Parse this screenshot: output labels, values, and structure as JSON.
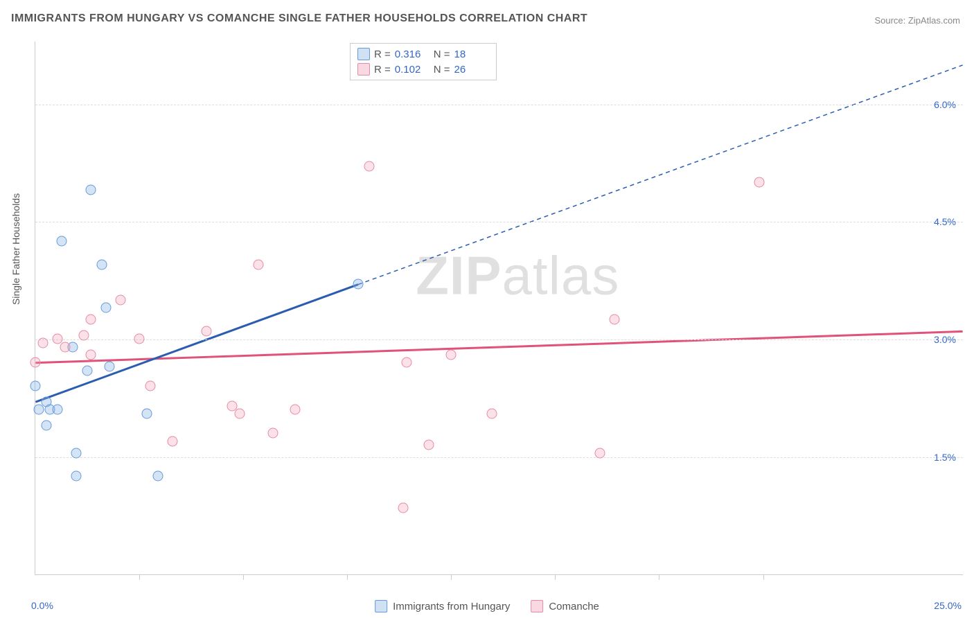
{
  "title": "IMMIGRANTS FROM HUNGARY VS COMANCHE SINGLE FATHER HOUSEHOLDS CORRELATION CHART",
  "source": "Source: ZipAtlas.com",
  "y_axis_label": "Single Father Households",
  "watermark_bold": "ZIP",
  "watermark_light": "atlas",
  "chart": {
    "type": "scatter",
    "xlim": [
      0.0,
      25.0
    ],
    "ylim": [
      0.0,
      6.8
    ],
    "x_tick_positions": [
      2.8,
      5.6,
      8.4,
      11.2,
      14.0,
      16.8,
      19.6
    ],
    "y_gridlines": [
      1.5,
      3.0,
      4.5,
      6.0
    ],
    "y_tick_labels": [
      "1.5%",
      "3.0%",
      "4.5%",
      "6.0%"
    ],
    "x_axis_min_label": "0.0%",
    "x_axis_max_label": "25.0%",
    "background_color": "#ffffff",
    "grid_color": "#dddddd",
    "axis_color": "#cccccc",
    "label_color": "#3366cc"
  },
  "series": [
    {
      "name": "Immigrants from Hungary",
      "color_fill": "rgba(135,179,226,0.35)",
      "color_stroke": "#6699dd",
      "line_color": "#2a5db0",
      "marker_radius": 7.5,
      "R": "0.316",
      "N": "18",
      "trend": {
        "x1": 0.0,
        "y1": 2.2,
        "x2": 8.7,
        "y2": 3.7,
        "dash_x2": 25.0,
        "dash_y2": 6.5
      },
      "points": [
        {
          "x": 0.0,
          "y": 2.4
        },
        {
          "x": 0.1,
          "y": 2.1
        },
        {
          "x": 0.3,
          "y": 2.2
        },
        {
          "x": 0.4,
          "y": 2.1
        },
        {
          "x": 0.3,
          "y": 1.9
        },
        {
          "x": 0.6,
          "y": 2.1
        },
        {
          "x": 0.7,
          "y": 4.25
        },
        {
          "x": 1.0,
          "y": 2.9
        },
        {
          "x": 1.4,
          "y": 2.6
        },
        {
          "x": 1.5,
          "y": 4.9
        },
        {
          "x": 1.8,
          "y": 3.95
        },
        {
          "x": 1.9,
          "y": 3.4
        },
        {
          "x": 2.0,
          "y": 2.65
        },
        {
          "x": 3.0,
          "y": 2.05
        },
        {
          "x": 3.3,
          "y": 1.25
        },
        {
          "x": 1.1,
          "y": 1.55
        },
        {
          "x": 1.1,
          "y": 1.25
        },
        {
          "x": 8.7,
          "y": 3.7
        }
      ]
    },
    {
      "name": "Comanche",
      "color_fill": "rgba(240,160,180,0.30)",
      "color_stroke": "#e68aa5",
      "line_color": "#e0527a",
      "marker_radius": 7.5,
      "R": "0.102",
      "N": "26",
      "trend": {
        "x1": 0.0,
        "y1": 2.7,
        "x2": 25.0,
        "y2": 3.1
      },
      "points": [
        {
          "x": 0.0,
          "y": 2.7
        },
        {
          "x": 0.2,
          "y": 2.95
        },
        {
          "x": 0.6,
          "y": 3.0
        },
        {
          "x": 0.8,
          "y": 2.9
        },
        {
          "x": 1.3,
          "y": 3.05
        },
        {
          "x": 1.5,
          "y": 3.25
        },
        {
          "x": 1.5,
          "y": 2.8
        },
        {
          "x": 2.3,
          "y": 3.5
        },
        {
          "x": 2.8,
          "y": 3.0
        },
        {
          "x": 3.1,
          "y": 2.4
        },
        {
          "x": 3.7,
          "y": 1.7
        },
        {
          "x": 4.6,
          "y": 3.1
        },
        {
          "x": 5.3,
          "y": 2.15
        },
        {
          "x": 5.5,
          "y": 2.05
        },
        {
          "x": 6.0,
          "y": 3.95
        },
        {
          "x": 6.4,
          "y": 1.8
        },
        {
          "x": 7.0,
          "y": 2.1
        },
        {
          "x": 9.0,
          "y": 5.2
        },
        {
          "x": 9.9,
          "y": 0.85
        },
        {
          "x": 10.0,
          "y": 2.7
        },
        {
          "x": 10.6,
          "y": 1.65
        },
        {
          "x": 12.3,
          "y": 2.05
        },
        {
          "x": 15.2,
          "y": 1.55
        },
        {
          "x": 15.6,
          "y": 3.25
        },
        {
          "x": 19.5,
          "y": 5.0
        },
        {
          "x": 11.2,
          "y": 2.8
        }
      ]
    }
  ],
  "legend_box": {
    "r_label": "R =",
    "n_label": "N ="
  },
  "bottom_legend": [
    {
      "label": "Immigrants from Hungary",
      "swatch": "blue"
    },
    {
      "label": "Comanche",
      "swatch": "pink"
    }
  ]
}
